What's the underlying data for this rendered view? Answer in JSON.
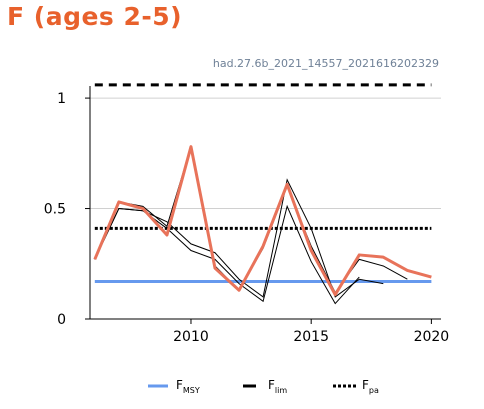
{
  "title": "F (ages 2-5)",
  "subtitle": "had.27.6b_2021_14557_2021616202329",
  "colors": {
    "title": "#e8612c",
    "estimate": "#e8735a",
    "fmsy": "#6699ee",
    "ref_black": "#000000",
    "grid": "#d0d0d0",
    "subtitle": "#6f8197"
  },
  "legend": {
    "fmsy": {
      "main": "F",
      "sub": "MSY"
    },
    "flim": {
      "main": "F",
      "sub": "lim"
    },
    "fpa": {
      "main": "F",
      "sub": "pa"
    }
  },
  "chart_data": {
    "type": "line",
    "xlim": [
      2005.8,
      2020.4
    ],
    "ylim": [
      0,
      1.1
    ],
    "x_ticks": [
      2010,
      2015,
      2020
    ],
    "x_tick_labels": [
      "2010",
      "2015",
      "2020"
    ],
    "y_ticks": [
      0,
      0.5,
      1
    ],
    "y_tick_labels": [
      "0",
      "0.5",
      "1"
    ],
    "grid": "horizontal",
    "legend_position": "bottom",
    "reference_lines": [
      {
        "key": "fmsy",
        "value": 0.17,
        "style": "solid"
      },
      {
        "key": "flim",
        "value": 1.06,
        "style": "dashed"
      },
      {
        "key": "fpa",
        "value": 0.41,
        "style": "dotted"
      }
    ],
    "estimate": {
      "x": [
        2006,
        2007,
        2008,
        2009,
        2010,
        2011,
        2012,
        2013,
        2014,
        2015,
        2016,
        2017,
        2018,
        2019,
        2020
      ],
      "y": [
        0.27,
        0.53,
        0.5,
        0.38,
        0.78,
        0.23,
        0.13,
        0.33,
        0.61,
        0.31,
        0.11,
        0.29,
        0.28,
        0.22,
        0.19
      ]
    },
    "retro_series": [
      {
        "x": [
          2006,
          2007,
          2008,
          2009,
          2010,
          2011,
          2012,
          2013,
          2014,
          2015,
          2016,
          2017,
          2018,
          2019
        ],
        "y": [
          0.27,
          0.53,
          0.51,
          0.42,
          0.78,
          0.24,
          0.13,
          0.32,
          0.6,
          0.33,
          0.12,
          0.27,
          0.24,
          0.18
        ]
      },
      {
        "x": [
          2006,
          2007,
          2008,
          2009,
          2010,
          2011,
          2012,
          2013,
          2014,
          2015,
          2016,
          2017,
          2018
        ],
        "y": [
          0.27,
          0.5,
          0.49,
          0.44,
          0.34,
          0.3,
          0.18,
          0.1,
          0.63,
          0.41,
          0.1,
          0.18,
          0.16
        ]
      },
      {
        "x": [
          2006,
          2007,
          2008,
          2009,
          2010,
          2011,
          2012,
          2013,
          2014,
          2015,
          2016,
          2017
        ],
        "y": [
          0.27,
          0.5,
          0.49,
          0.41,
          0.31,
          0.27,
          0.16,
          0.08,
          0.51,
          0.26,
          0.07,
          0.19
        ]
      }
    ]
  }
}
